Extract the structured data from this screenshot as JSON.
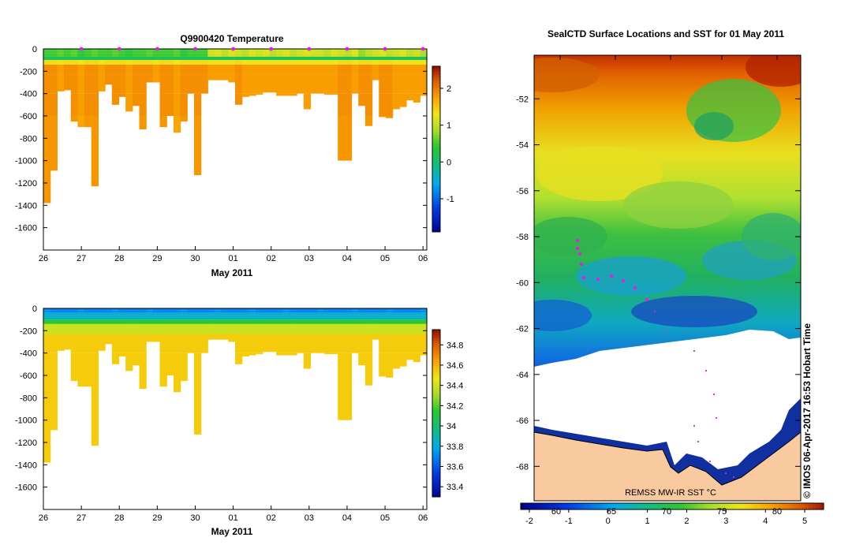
{
  "chart_data": [
    {
      "type": "heatmap",
      "id": "temperature",
      "title": "Q9900420  Temperature",
      "xlabel": "May 2011",
      "x_ticks": [
        "26",
        "27",
        "28",
        "29",
        "30",
        "01",
        "02",
        "03",
        "04",
        "05",
        "06"
      ],
      "y_ticks": [
        "0",
        "-200",
        "-400",
        "-600",
        "-800",
        "-1000",
        "-1200",
        "-1400",
        "-1600"
      ],
      "ylim": [
        -1800,
        0
      ],
      "xlim": [
        26,
        36.1
      ],
      "colorbar_ticks": [
        "-1",
        "0",
        "1",
        "2"
      ],
      "colorbar_range": [
        -1.9,
        2.6
      ],
      "profile_markers_day": [
        27,
        28,
        29,
        30,
        31,
        32,
        33,
        34,
        35,
        36
      ],
      "profile_max_depth_m": [
        1380,
        1090,
        380,
        370,
        650,
        700,
        700,
        1230,
        380,
        320,
        500,
        430,
        560,
        510,
        720,
        300,
        300,
        700,
        600,
        750,
        650,
        400,
        1130,
        400,
        280,
        280,
        280,
        300,
        500,
        430,
        420,
        410,
        390,
        390,
        420,
        420,
        420,
        400,
        540,
        400,
        400,
        410,
        410,
        1000,
        1000,
        400,
        510,
        690,
        280,
        610,
        620,
        540,
        520,
        460,
        480,
        420
      ],
      "surface_values": [
        0.5,
        0.5,
        0.6,
        0.5,
        0.6,
        0.4,
        0.5,
        0.6,
        0.5,
        0.5,
        0.6,
        0.5,
        0.4,
        0.5,
        0.5,
        0.6,
        0.5,
        0.5,
        0.5,
        0.6,
        0.4,
        0.5,
        0.5,
        0.5,
        1.1,
        1.2,
        1.0,
        1.2,
        1.1,
        1.0,
        1.2,
        1.1,
        1.2,
        1.0,
        1.1,
        1.2,
        1.0,
        1.1,
        1.2,
        1.1,
        1.1,
        1.0,
        1.2,
        1.1,
        1.0,
        1.2,
        0.8,
        1.0,
        1.1,
        1.2,
        1.0,
        1.1,
        1.2,
        1.0,
        1.1,
        0.9
      ],
      "deep_values": [
        1.9,
        1.9,
        1.8,
        1.9,
        1.9,
        1.8,
        1.9,
        1.9,
        1.8,
        1.9,
        1.9,
        1.9,
        1.8,
        1.9,
        1.9,
        1.9,
        1.8,
        1.9,
        1.9,
        1.8,
        1.9,
        1.9,
        1.9,
        1.9,
        1.8,
        1.8,
        1.8,
        1.8,
        1.9,
        1.8,
        1.8,
        1.8,
        1.8,
        1.8,
        1.8,
        1.8,
        1.8,
        1.8,
        1.8,
        1.8,
        1.8,
        1.8,
        1.8,
        1.9,
        1.9,
        1.8,
        1.9,
        1.9,
        1.8,
        1.9,
        1.9,
        1.8,
        1.8,
        1.8,
        1.8,
        1.8
      ]
    },
    {
      "type": "heatmap",
      "id": "salinity",
      "title": "",
      "xlabel": "May 2011",
      "x_ticks": [
        "26",
        "27",
        "28",
        "29",
        "30",
        "01",
        "02",
        "03",
        "04",
        "05",
        "06"
      ],
      "y_ticks": [
        "0",
        "-200",
        "-400",
        "-600",
        "-800",
        "-1000",
        "-1200",
        "-1400",
        "-1600"
      ],
      "ylim": [
        -1800,
        0
      ],
      "xlim": [
        26,
        36.1
      ],
      "colorbar_ticks": [
        "33.4",
        "33.6",
        "33.8",
        "34",
        "34.2",
        "34.4",
        "34.6",
        "34.8"
      ],
      "colorbar_range": [
        33.3,
        34.95
      ],
      "surface_value": 33.7,
      "deep_value": 34.55
    },
    {
      "type": "heatmap",
      "id": "sst_map",
      "title": "SealCTD Surface Locations and SST for 01 May 2011",
      "y_ticks": [
        "-52",
        "-54",
        "-56",
        "-58",
        "-60",
        "-62",
        "-64",
        "-66",
        "-68"
      ],
      "ylim": [
        -69.5,
        -50.1
      ],
      "x_ticks_top": [
        "60",
        "65",
        "70",
        "75",
        "80"
      ],
      "colorbar_ticks": [
        "-2",
        "-1",
        "0",
        "1",
        "2",
        "3",
        "4",
        "5"
      ],
      "colorbar_range": [
        -2,
        5.7
      ],
      "source_label": "REMSS MW-IR SST °C",
      "credit": "© IMOS 06-Apr-2017 16:53 Hobart Time"
    }
  ]
}
